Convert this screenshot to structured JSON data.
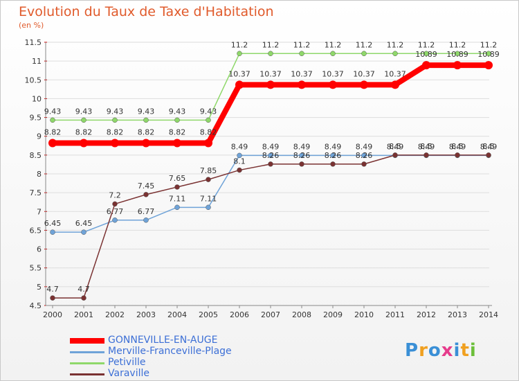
{
  "chart_data": {
    "type": "line",
    "title": "Evolution du Taux de Taxe d'Habitation",
    "ylabel": "(en %)",
    "xlabel": "",
    "ylim": [
      4.5,
      11.5
    ],
    "yticks": [
      "4.5",
      "5",
      "5.5",
      "6",
      "6.5",
      "7",
      "7.5",
      "8",
      "8.5",
      "9",
      "9.5",
      "10",
      "10.5",
      "11",
      "11.5"
    ],
    "categories": [
      "2000",
      "2001",
      "2002",
      "2003",
      "2004",
      "2005",
      "2006",
      "2007",
      "2008",
      "2009",
      "2010",
      "2011",
      "2012",
      "2013",
      "2014"
    ],
    "grid": true,
    "legend": "bottom-left",
    "series": [
      {
        "name": "GONNEVILLE-EN-AUGE",
        "color": "#ff0000",
        "values": [
          8.82,
          8.82,
          8.82,
          8.82,
          8.82,
          8.82,
          10.37,
          10.37,
          10.37,
          10.37,
          10.37,
          10.37,
          10.89,
          10.89,
          10.89
        ],
        "labels": [
          "8.82",
          "8.82",
          "8.82",
          "8.82",
          "8.82",
          "8.82",
          "10.37",
          "10.37",
          "10.37",
          "10.37",
          "10.37",
          "10.37",
          "10.89",
          "10.89",
          "10.89"
        ]
      },
      {
        "name": "Merville-Franceville-Plage",
        "color": "#6fa3d8",
        "values": [
          6.45,
          6.45,
          6.77,
          6.77,
          7.11,
          7.11,
          8.49,
          8.49,
          8.49,
          8.49,
          8.49,
          8.49,
          8.49,
          8.49,
          8.49
        ],
        "labels": [
          "6.45",
          "6.45",
          "6.77",
          "6.77",
          "7.11",
          "7.11",
          "8.49",
          "8.49",
          "8.49",
          "8.49",
          "8.49",
          "8.49",
          "8.49",
          "8.49",
          "8.49"
        ]
      },
      {
        "name": "Petiville",
        "color": "#8fd86a",
        "values": [
          9.43,
          9.43,
          9.43,
          9.43,
          9.43,
          9.43,
          11.2,
          11.2,
          11.2,
          11.2,
          11.2,
          11.2,
          11.2,
          11.2,
          11.2
        ],
        "labels": [
          "9.43",
          "9.43",
          "9.43",
          "9.43",
          "9.43",
          "9.43",
          "11.2",
          "11.2",
          "11.2",
          "11.2",
          "11.2",
          "11.2",
          "11.2",
          "11.2",
          "11.2"
        ]
      },
      {
        "name": "Varaville",
        "color": "#7a3232",
        "values": [
          4.7,
          4.7,
          7.2,
          7.45,
          7.65,
          7.85,
          8.1,
          8.26,
          8.26,
          8.26,
          8.26,
          8.5,
          8.5,
          8.5,
          8.5
        ],
        "labels": [
          "4.7",
          "4.7",
          "7.2",
          "7.45",
          "7.65",
          "7.85",
          "8.1",
          "8.26",
          "8.26",
          "8.26",
          "8.26",
          "8.5",
          "8.5",
          "8.5",
          "8.5"
        ]
      }
    ]
  },
  "logo": {
    "text": "Proxiti"
  }
}
